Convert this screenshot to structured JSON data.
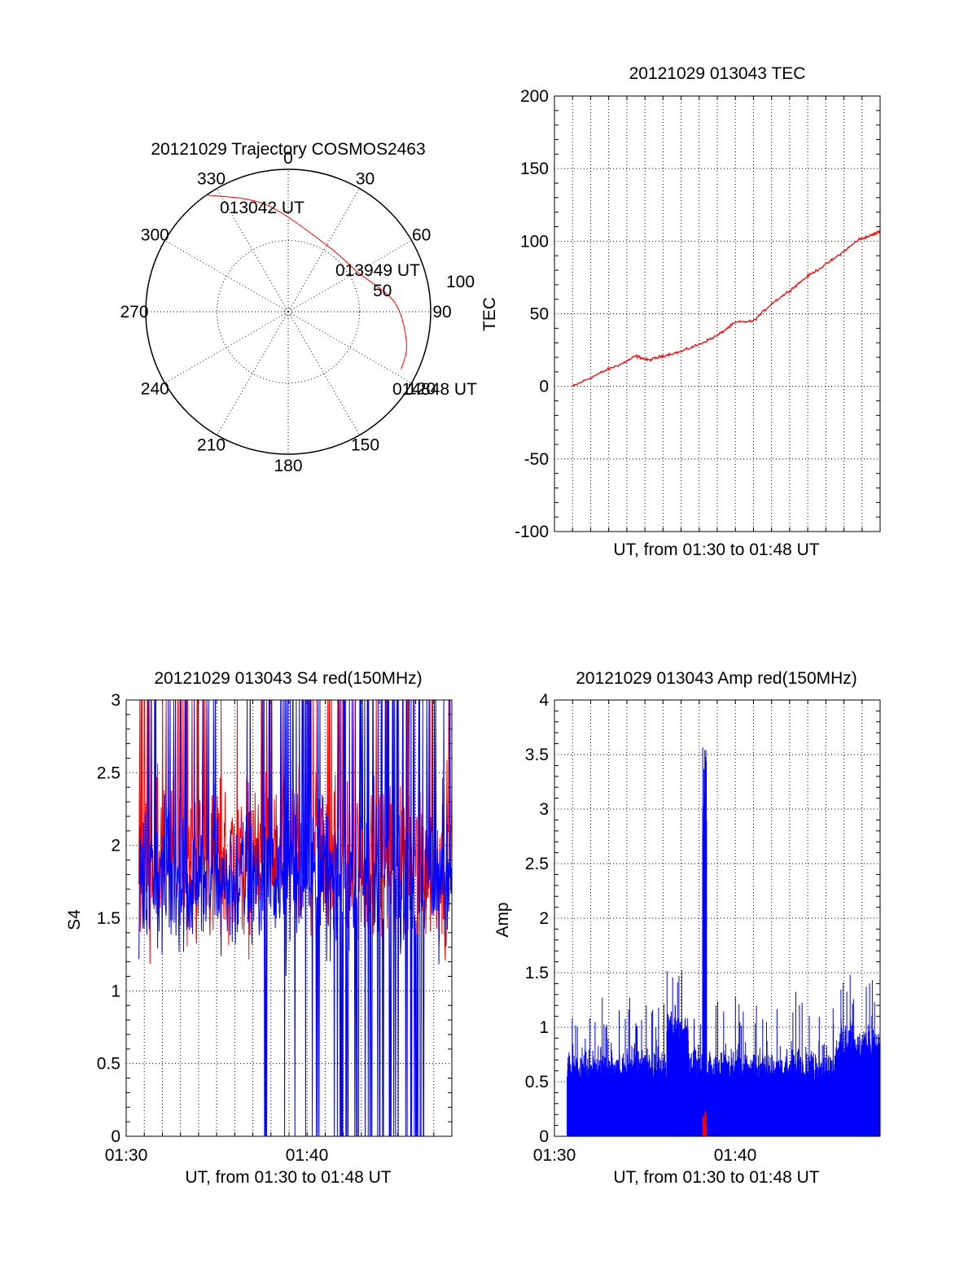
{
  "chart_data": [
    {
      "id": "polar",
      "type": "scatter",
      "title": "20121029 Trajectory COSMOS2463",
      "azimuth_labels": [
        "0",
        "30",
        "60",
        "90",
        "120",
        "150",
        "180",
        "210",
        "240",
        "270",
        "300",
        "330"
      ],
      "radial_labels": [
        "50",
        "100"
      ],
      "rlim": [
        0,
        100
      ],
      "trajectory_color": "#ff0000",
      "trajectory": [
        {
          "azimuth": 325,
          "radius": 100
        },
        {
          "azimuth": 348,
          "radius": 77
        },
        {
          "azimuth": 30,
          "radius": 54
        },
        {
          "azimuth": 60,
          "radius": 56
        },
        {
          "azimuth": 85,
          "radius": 75
        },
        {
          "azimuth": 105,
          "radius": 86
        },
        {
          "azimuth": 117,
          "radius": 89
        }
      ],
      "annotations": [
        "013042 UT",
        "013949 UT",
        "014848 UT"
      ]
    },
    {
      "id": "tec",
      "type": "line",
      "title": "20121029 013043 TEC",
      "xlabel": "UT, from 01:30 to 01:48 UT",
      "ylabel": "TEC",
      "ylim": [
        -100,
        200
      ],
      "yticks": [
        "-100",
        "-50",
        "0",
        "50",
        "100",
        "150",
        "200"
      ],
      "xlim": [
        0,
        18
      ],
      "grid": true,
      "series": [
        {
          "color": "#ff0000",
          "x": [
            1.0,
            2.0,
            3.0,
            3.8,
            4.5,
            5.2,
            6.0,
            7.0,
            8.0,
            9.0,
            10.0,
            11.0,
            12.0,
            13.0,
            14.0,
            15.0,
            16.0,
            16.8,
            17.5,
            18.0
          ],
          "values": [
            0,
            6,
            12,
            16,
            21,
            18,
            21,
            24,
            29,
            35,
            44,
            45,
            57,
            66,
            76,
            84,
            93,
            101,
            104,
            107
          ]
        }
      ]
    },
    {
      "id": "s4",
      "type": "line",
      "title": "20121029 013043 S4 red(150MHz)",
      "xlabel": "UT, from 01:30 to 01:48 UT",
      "ylabel": "S4",
      "ylim": [
        0,
        3
      ],
      "yticks": [
        "0",
        "0.5",
        "1",
        "1.5",
        "2",
        "2.5",
        "3"
      ],
      "xticks": [
        "01:30",
        "01:40"
      ],
      "xlim": [
        0,
        18
      ],
      "grid": true,
      "series": [
        {
          "color": "#ff0000",
          "x_range": [
            0.7,
            18.0
          ],
          "mean": 1.9,
          "spread": 0.35,
          "min": 0.9,
          "max": 3.0
        },
        {
          "color": "#0000ff",
          "x_range": [
            0.7,
            18.0
          ],
          "mean": 1.75,
          "spread": 0.3,
          "min": 0.0,
          "max": 3.0
        }
      ]
    },
    {
      "id": "amp",
      "type": "bar",
      "title": "20121029 013043 Amp red(150MHz)",
      "xlabel": "UT, from 01:30 to 01:48 UT",
      "ylabel": "Amp",
      "ylim": [
        0,
        4
      ],
      "yticks": [
        "0",
        "0.5",
        "1",
        "1.5",
        "2",
        "2.5",
        "3",
        "3.5",
        "4"
      ],
      "xticks": [
        "01:30",
        "01:40"
      ],
      "xlim": [
        0,
        18
      ],
      "grid": true,
      "series": [
        {
          "color": "#0000ff",
          "x_range": [
            0.7,
            18.0
          ],
          "baseline": 0.5,
          "spike_time": 8.3,
          "spike_value": 3.6
        },
        {
          "color": "#ff0000",
          "x_range": [
            8.2,
            8.4
          ],
          "max": 0.25
        }
      ]
    }
  ]
}
